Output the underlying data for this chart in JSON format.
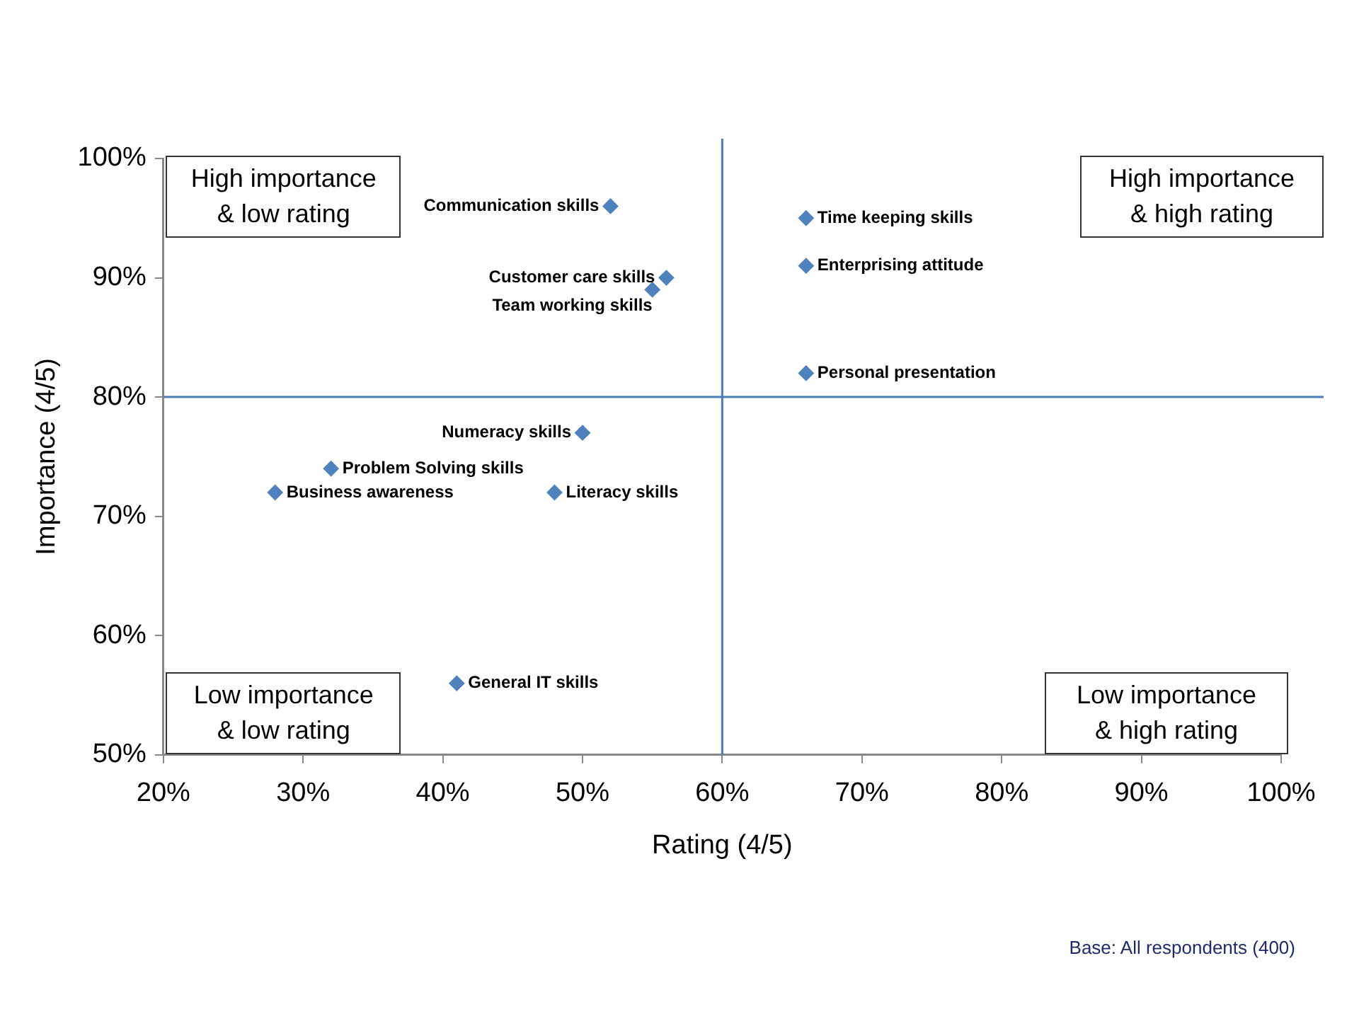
{
  "chart_data": {
    "type": "scatter",
    "xlabel": "Rating (4/5)",
    "ylabel": "Importance (4/5)",
    "x": [
      52,
      56,
      55,
      66,
      66,
      66,
      50,
      32,
      28,
      48,
      41
    ],
    "values": [
      96,
      90,
      89,
      95,
      91,
      82,
      77,
      74,
      72,
      72,
      56
    ],
    "color": "#4f81bd",
    "marker": "diamond",
    "xlim": [
      20,
      100
    ],
    "xticks": [
      {
        "value": 20,
        "label": "20%"
      },
      {
        "value": 30,
        "label": "30%"
      },
      {
        "value": 40,
        "label": "40%"
      },
      {
        "value": 50,
        "label": "50%"
      },
      {
        "value": 60,
        "label": "60%"
      },
      {
        "value": 70,
        "label": "70%"
      },
      {
        "value": 80,
        "label": "80%"
      },
      {
        "value": 90,
        "label": "90%"
      },
      {
        "value": 100,
        "label": "100%"
      }
    ],
    "ylim": [
      50,
      100
    ],
    "yticks": [
      {
        "value": 50,
        "label": "50%"
      },
      {
        "value": 60,
        "label": "60%"
      },
      {
        "value": 70,
        "label": "70%"
      },
      {
        "value": 80,
        "label": "80%"
      },
      {
        "value": 90,
        "label": "90%"
      },
      {
        "value": 100,
        "label": "100%"
      }
    ],
    "grid": false,
    "legend": false,
    "ref_lines": [
      {
        "axis": "x",
        "value": 60,
        "color": "#4a7ebb"
      },
      {
        "axis": "y",
        "value": 80,
        "color": "#4a7ebb"
      }
    ],
    "annotations": [
      "High importance & low rating",
      "High importance & high rating",
      "Low importance & low rating",
      "Low importance & high rating",
      "Base: All respondents (400)",
      {
        "text": "Communication skills",
        "x": 52,
        "y": 96
      },
      {
        "text": "Customer care skills",
        "x": 56,
        "y": 90
      },
      {
        "text": "Team working skills",
        "x": 55,
        "y": 89
      },
      {
        "text": "Time keeping skills",
        "x": 66,
        "y": 95
      },
      {
        "text": "Enterprising attitude",
        "x": 66,
        "y": 91
      },
      {
        "text": "Personal presentation",
        "x": 66,
        "y": 82
      },
      {
        "text": "Numeracy skills",
        "x": 50,
        "y": 77
      },
      {
        "text": "Problem Solving skills",
        "x": 32,
        "y": 74
      },
      {
        "text": "Business awareness",
        "x": 28,
        "y": 72
      },
      {
        "text": "Literacy skills",
        "x": 48,
        "y": 72
      },
      {
        "text": "General IT skills",
        "x": 41,
        "y": 56
      }
    ]
  }
}
